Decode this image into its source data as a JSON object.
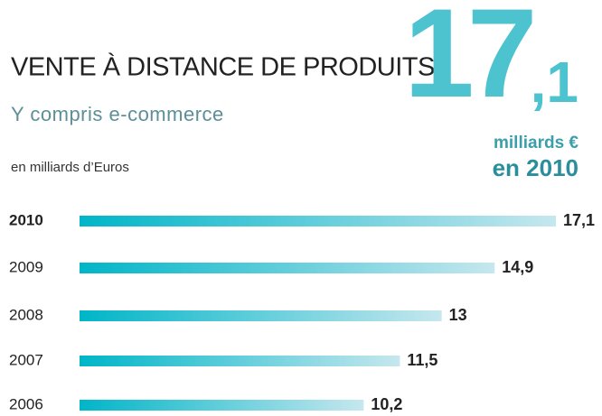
{
  "chart_data": {
    "type": "bar",
    "orientation": "horizontal",
    "title": "VENTE À DISTANCE DE PRODUITS",
    "subtitle": "Y compris e-commerce",
    "unit_label": "en milliards d’Euros",
    "highlight": "17,1",
    "highlight_unit": "milliards €",
    "highlight_year": "en 2010",
    "categories": [
      "2010",
      "2009",
      "2008",
      "2007",
      "2006"
    ],
    "values": [
      17.1,
      14.9,
      13,
      11.5,
      10.2
    ],
    "value_labels": [
      "17,1",
      "14,9",
      "13",
      "11,5",
      "10,2"
    ],
    "color": "#00b5c8",
    "color_end": "#c6e7ee"
  }
}
